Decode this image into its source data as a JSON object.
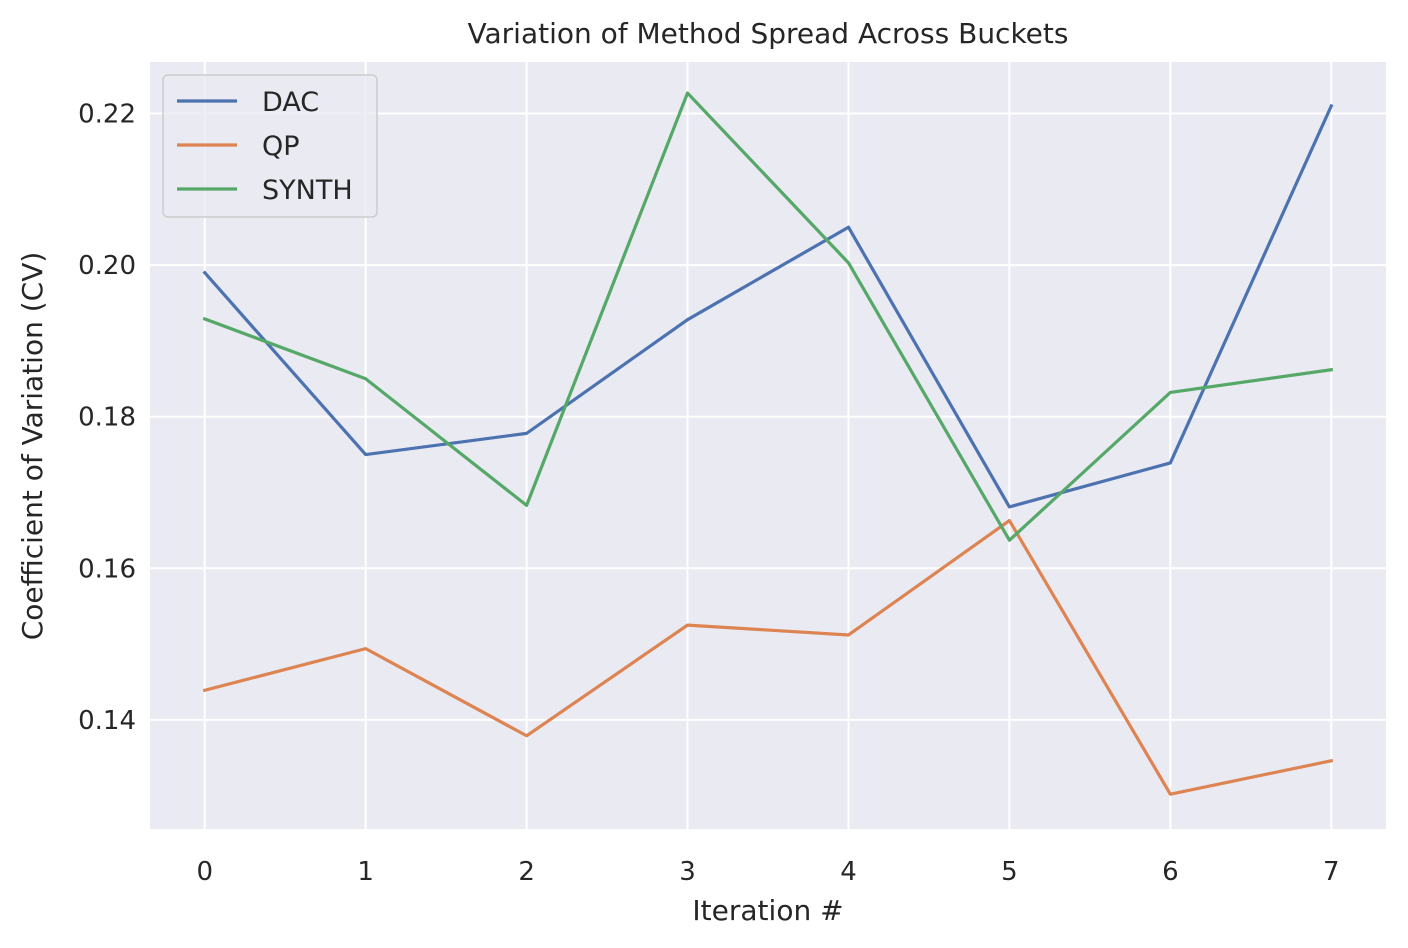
{
  "chart_data": {
    "type": "line",
    "title": "Variation of Method Spread Across Buckets",
    "xlabel": "Iteration #",
    "ylabel": "Coefficient of Variation (CV)",
    "x": [
      0,
      1,
      2,
      3,
      4,
      5,
      6,
      7
    ],
    "xticks": [
      "0",
      "1",
      "2",
      "3",
      "4",
      "5",
      "6",
      "7"
    ],
    "yticks": [
      "0.14",
      "0.16",
      "0.18",
      "0.20",
      "0.22"
    ],
    "ytick_values": [
      0.14,
      0.16,
      0.18,
      0.2,
      0.22
    ],
    "xlim": [
      -0.34,
      7.34
    ],
    "ylim": [
      0.1256,
      0.2268
    ],
    "grid": true,
    "background_color": "#eaeaf2",
    "legend_position": "top-left",
    "series": [
      {
        "name": "DAC",
        "color": "#4c72b0",
        "values": [
          0.199,
          0.175,
          0.1778,
          0.1928,
          0.205,
          0.1681,
          0.1739,
          0.221
        ]
      },
      {
        "name": "QP",
        "color": "#dd8452",
        "values": [
          0.1439,
          0.1494,
          0.1379,
          0.1525,
          0.1512,
          0.1663,
          0.1302,
          0.1346
        ]
      },
      {
        "name": "SYNTH",
        "color": "#55a868",
        "values": [
          0.1929,
          0.185,
          0.1683,
          0.2227,
          0.2003,
          0.1637,
          0.1832,
          0.1862
        ]
      }
    ]
  }
}
